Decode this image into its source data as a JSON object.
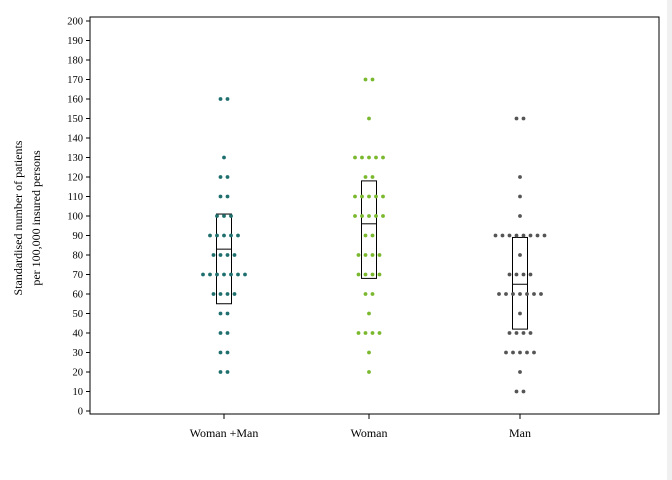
{
  "chart_data": {
    "type": "scatter",
    "subtype": "dot-strip-plot-with-box",
    "ylabel_lines": [
      "Standardised number of patients",
      "per 100,000 insured persons"
    ],
    "xlabel": "",
    "ylim": [
      0,
      200
    ],
    "yticks": [
      0,
      10,
      20,
      30,
      40,
      50,
      60,
      70,
      80,
      90,
      100,
      110,
      120,
      130,
      140,
      150,
      160,
      170,
      180,
      190,
      200
    ],
    "grid": false,
    "categories": [
      "Woman +Man",
      "Woman",
      "Man"
    ],
    "series": [
      {
        "category": "Woman +Man",
        "color": "#1f6f6f",
        "values": [
          160,
          160,
          130,
          120,
          120,
          110,
          110,
          100,
          100,
          100,
          90,
          90,
          90,
          90,
          90,
          80,
          80,
          80,
          80,
          70,
          70,
          70,
          70,
          70,
          70,
          70,
          60,
          60,
          60,
          60,
          50,
          50,
          40,
          40,
          30,
          30,
          20,
          20
        ],
        "box": {
          "q1": 55,
          "median": 83,
          "q3": 101
        }
      },
      {
        "category": "Woman",
        "color": "#7ab82e",
        "values": [
          170,
          170,
          150,
          130,
          130,
          130,
          130,
          130,
          120,
          120,
          110,
          110,
          110,
          110,
          110,
          100,
          100,
          100,
          100,
          100,
          90,
          90,
          80,
          80,
          80,
          80,
          70,
          70,
          70,
          70,
          60,
          60,
          50,
          40,
          40,
          40,
          40,
          30,
          20
        ],
        "box": {
          "q1": 68,
          "median": 96,
          "q3": 118
        }
      },
      {
        "category": "Man",
        "color": "#555555",
        "values": [
          150,
          150,
          120,
          110,
          100,
          90,
          90,
          90,
          90,
          90,
          90,
          90,
          90,
          80,
          70,
          70,
          70,
          70,
          60,
          60,
          60,
          60,
          60,
          60,
          60,
          50,
          40,
          40,
          40,
          40,
          30,
          30,
          30,
          30,
          30,
          20,
          10,
          10
        ],
        "box": {
          "q1": 42,
          "median": 65,
          "q3": 89
        }
      }
    ]
  }
}
